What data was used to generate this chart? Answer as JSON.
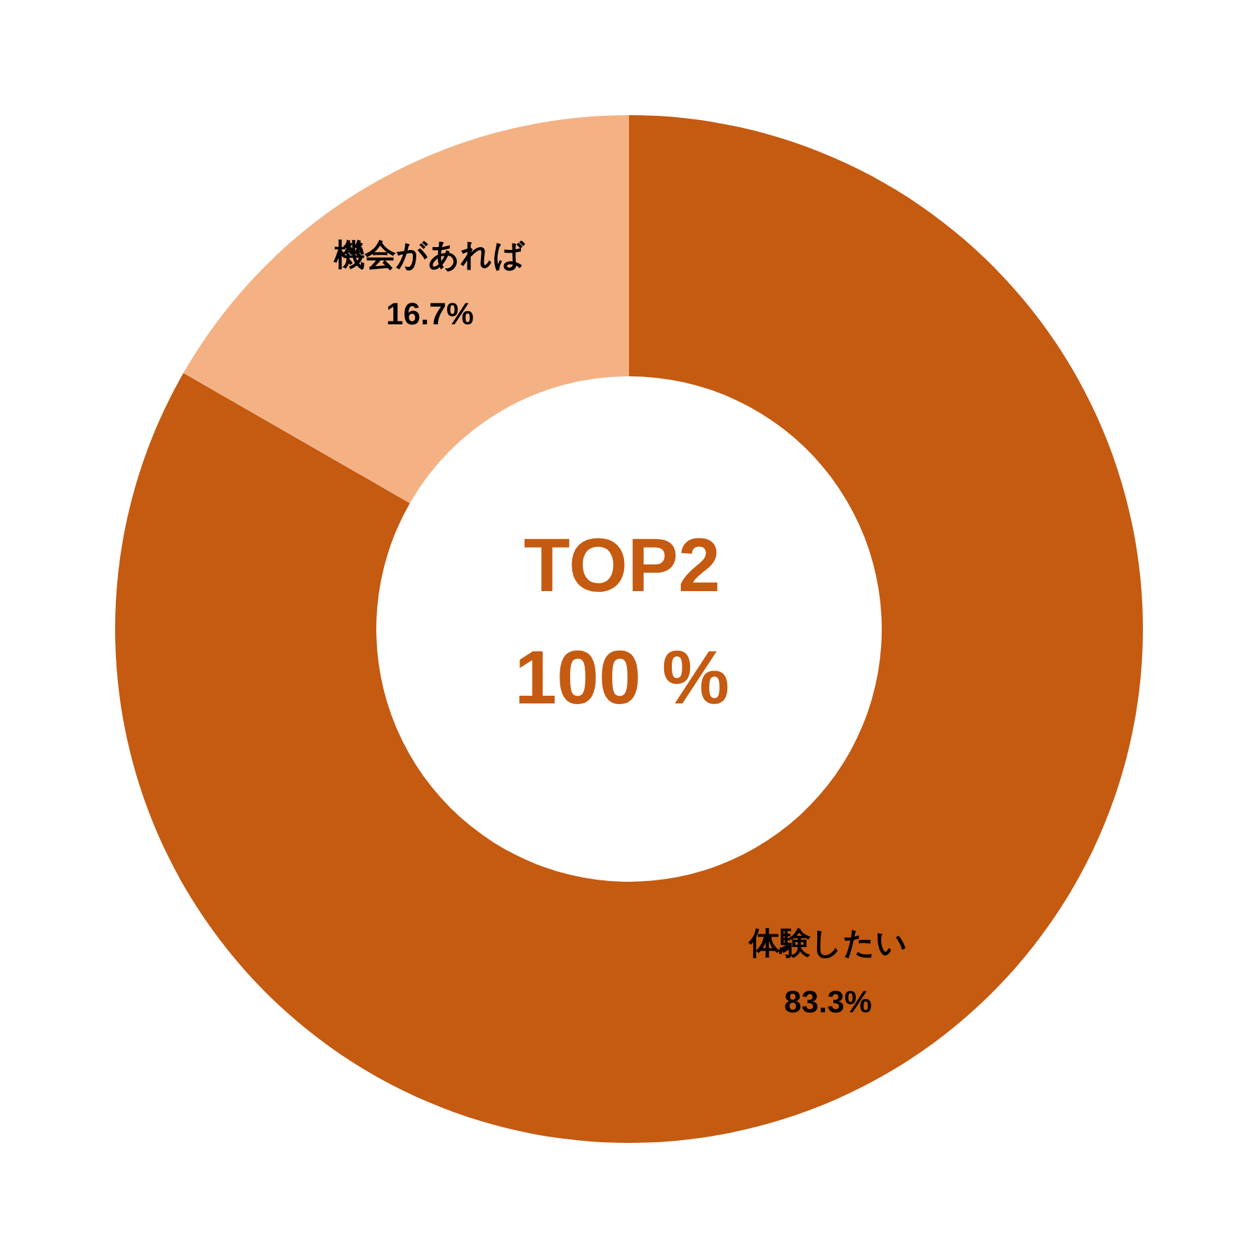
{
  "chart_data": {
    "type": "donut",
    "categories": [
      "体験したい",
      "機会があれば"
    ],
    "values": [
      83.3,
      16.7
    ],
    "colors": [
      "#c55a11",
      "#f4b183"
    ],
    "value_labels": [
      "83.3%",
      "16.7%"
    ],
    "annotations": [
      "TOP2",
      "100 %"
    ]
  }
}
